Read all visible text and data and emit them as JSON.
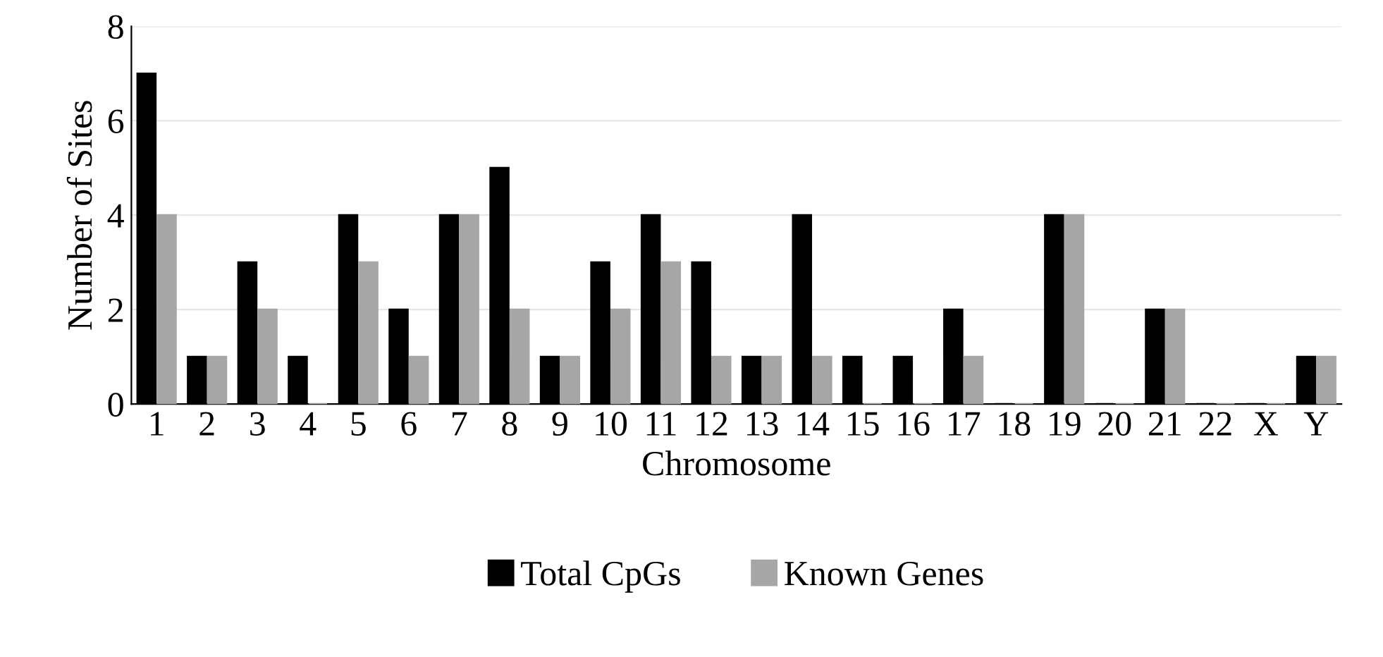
{
  "chart_data": {
    "type": "bar",
    "xlabel": "Chromosome",
    "ylabel": "Number of Sites",
    "categories": [
      "1",
      "2",
      "3",
      "4",
      "5",
      "6",
      "7",
      "8",
      "9",
      "10",
      "11",
      "12",
      "13",
      "14",
      "15",
      "16",
      "17",
      "18",
      "19",
      "20",
      "21",
      "22",
      "X",
      "Y"
    ],
    "series": [
      {
        "name": "Total CpGs",
        "color": "#000000",
        "values": [
          7,
          1,
          3,
          1,
          4,
          2,
          4,
          5,
          1,
          3,
          4,
          3,
          1,
          4,
          1,
          1,
          2,
          0,
          4,
          0,
          2,
          0,
          0,
          1
        ]
      },
      {
        "name": "Known Genes",
        "color": "#a6a6a6",
        "values": [
          4,
          1,
          2,
          0,
          3,
          1,
          4,
          2,
          1,
          2,
          3,
          1,
          1,
          1,
          0,
          0,
          1,
          0,
          4,
          0,
          2,
          0,
          0,
          1
        ]
      }
    ],
    "ylim": [
      0,
      8
    ],
    "yticks": [
      0,
      2,
      4,
      6,
      8
    ],
    "grid": "y",
    "legend": "bottom"
  }
}
